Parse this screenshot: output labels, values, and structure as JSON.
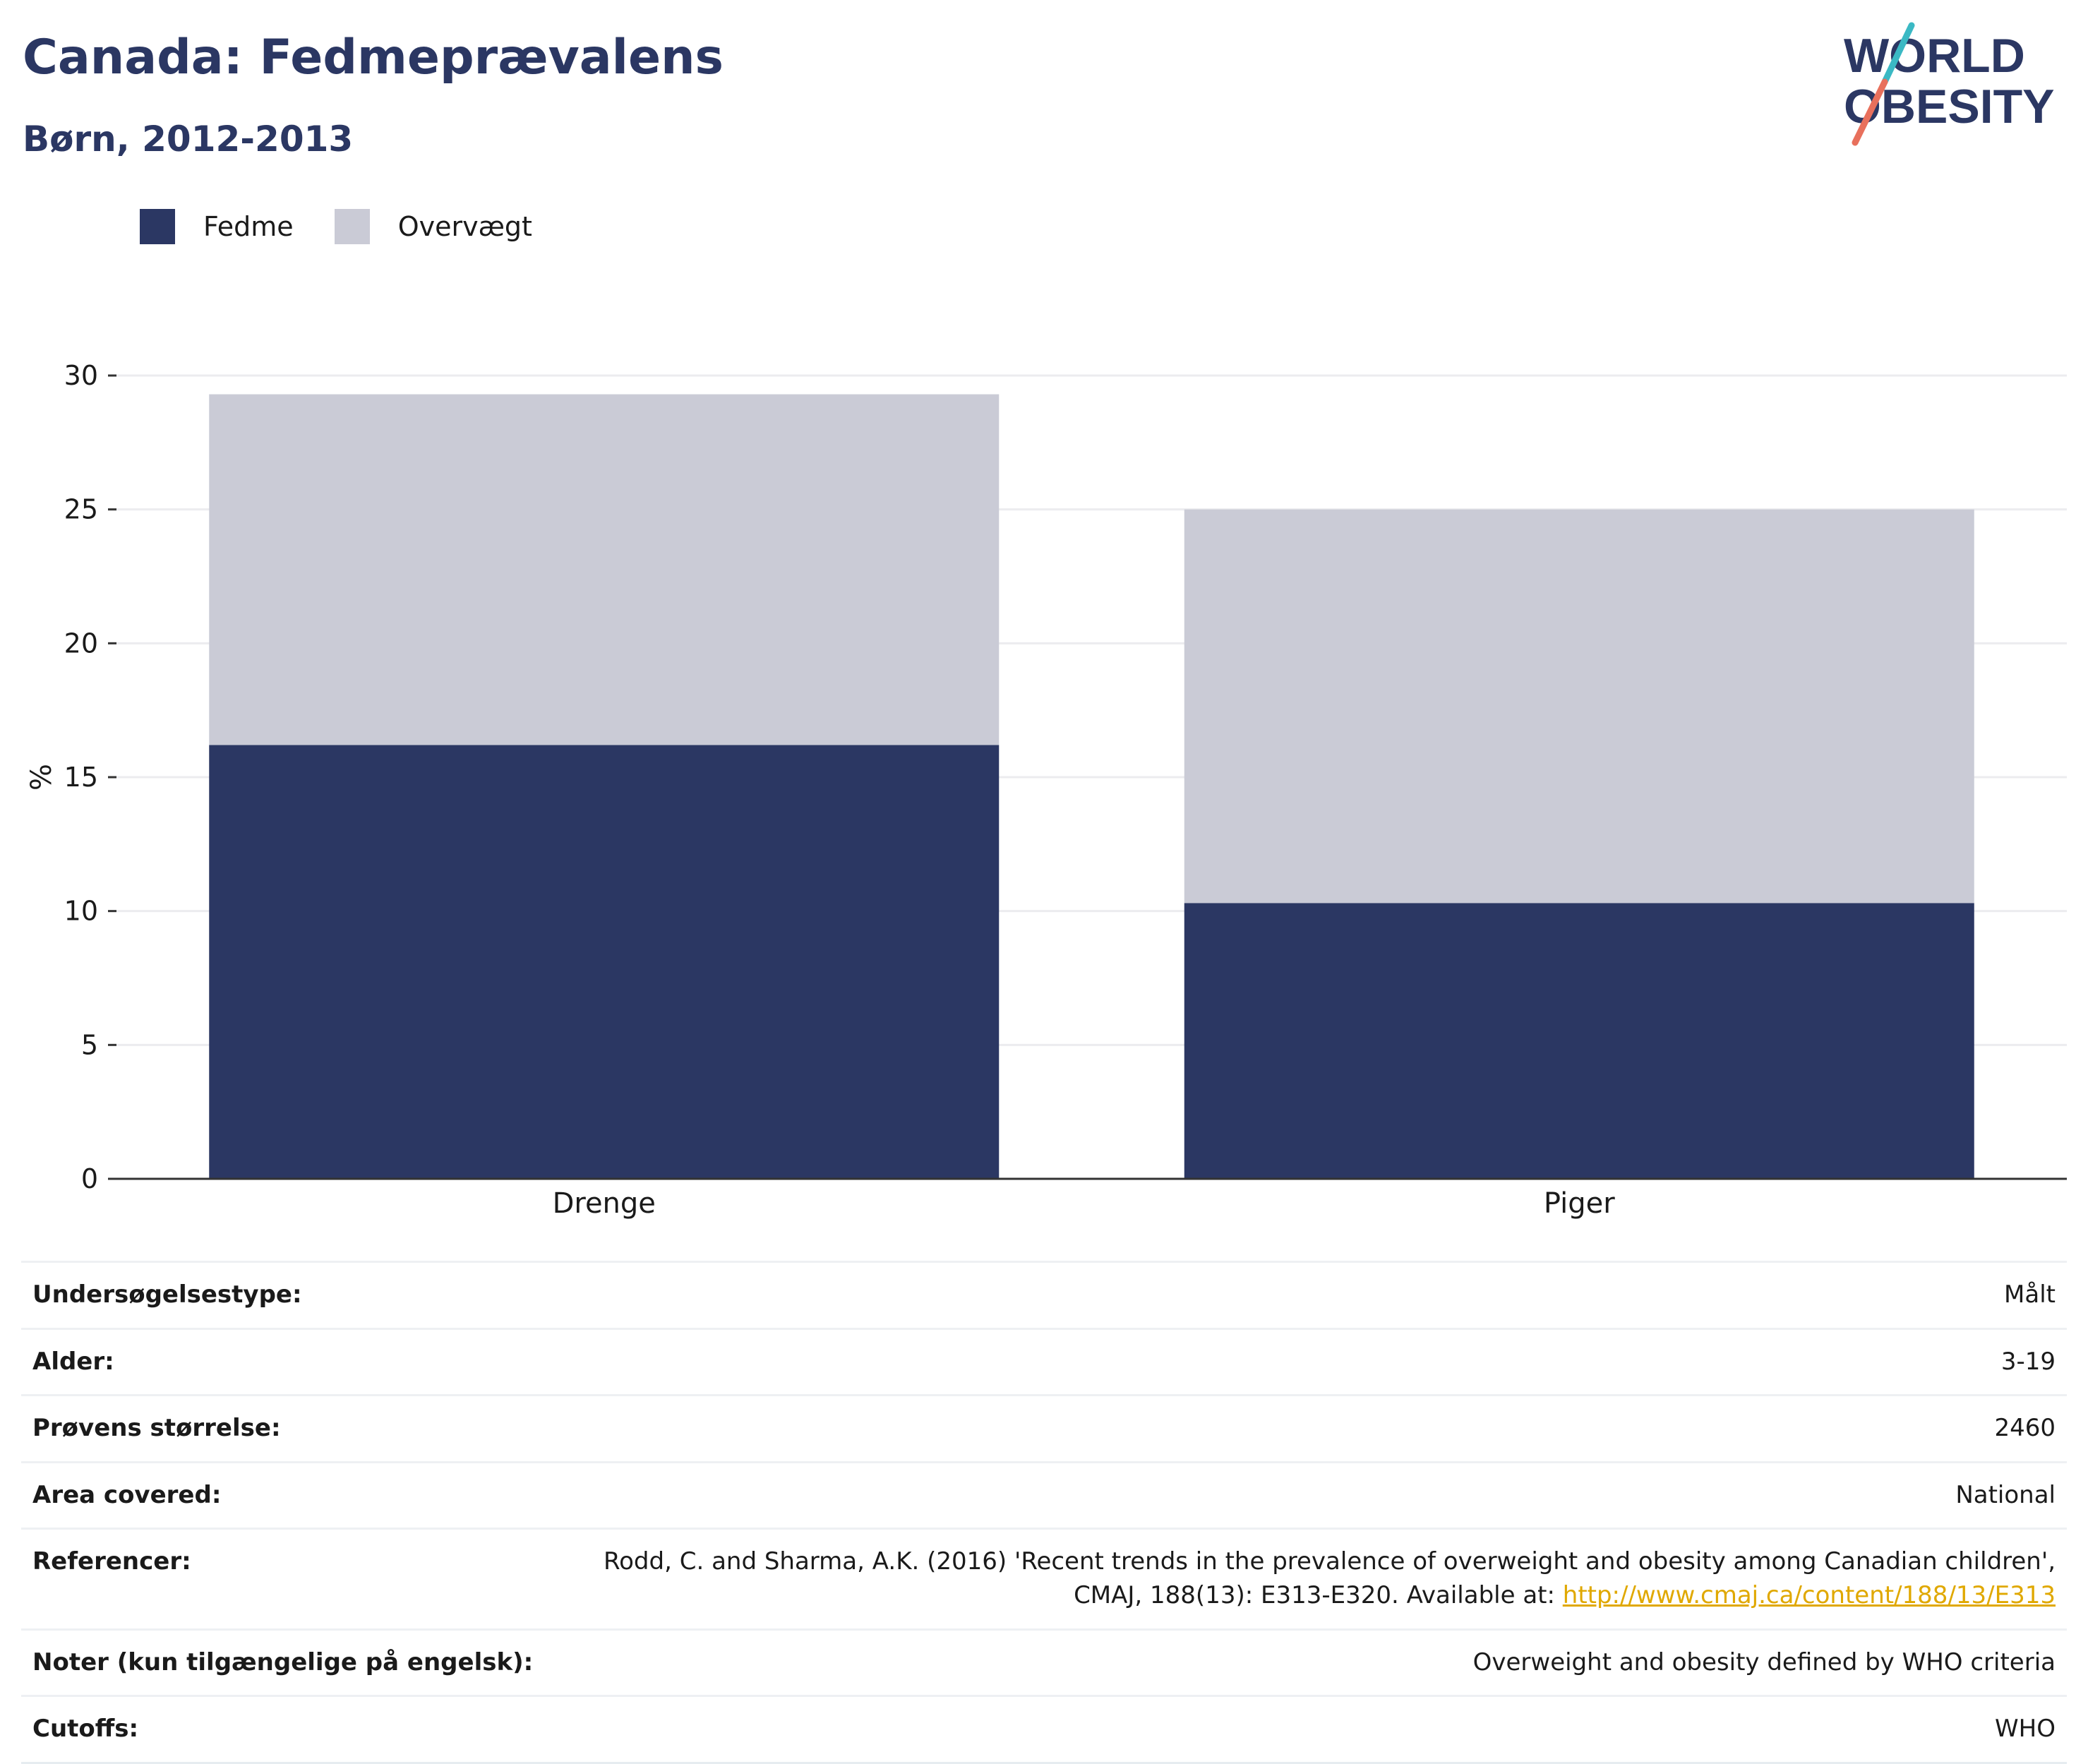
{
  "header": {
    "title": "Canada: Fedmeprævalens",
    "subtitle": "Børn, 2012-2013"
  },
  "logo": {
    "line1": "WORLD",
    "line2": "OBESITY",
    "accent_teal": "#3bb9c4",
    "accent_coral": "#e8705c",
    "text_color": "#2b3763"
  },
  "legend": [
    {
      "label": "Fedme",
      "color": "#2b3763"
    },
    {
      "label": "Overvægt",
      "color": "#cacbd6"
    }
  ],
  "chart_data": {
    "type": "bar",
    "stacked": true,
    "categories": [
      "Drenge",
      "Piger"
    ],
    "series": [
      {
        "name": "Fedme",
        "color": "#2b3763",
        "values": [
          16.2,
          10.3
        ]
      },
      {
        "name": "Overvægt",
        "color": "#cacbd6",
        "values": [
          13.1,
          14.7
        ]
      }
    ],
    "ylabel": "%",
    "ylim": [
      0,
      30
    ],
    "yticks": [
      0,
      5,
      10,
      15,
      20,
      25,
      30
    ],
    "grid": true,
    "legend_position": "top-left"
  },
  "meta": [
    {
      "key": "Undersøgelsestype:",
      "value": "Målt"
    },
    {
      "key": "Alder:",
      "value": "3-19"
    },
    {
      "key": "Prøvens størrelse:",
      "value": "2460"
    },
    {
      "key": "Area covered:",
      "value": "National"
    },
    {
      "key": "Referencer:",
      "value": "Rodd, C. and Sharma, A.K. (2016) 'Recent trends in the prevalence of overweight and obesity among Canadian children', CMAJ, 188(13): E313-E320. Available at: ",
      "link": "http://www.cmaj.ca/content/188/13/E313"
    },
    {
      "key": "Noter (kun tilgængelige på engelsk):",
      "value": "Overweight and obesity defined by WHO criteria"
    },
    {
      "key": "Cutoffs:",
      "value": "WHO"
    }
  ]
}
